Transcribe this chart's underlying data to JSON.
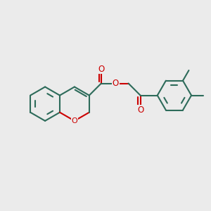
{
  "background_color": "#ebebeb",
  "bond_color": "#2d6b5a",
  "atom_color_O": "#cc0000",
  "bond_width": 1.5,
  "figsize": [
    3.0,
    3.0
  ],
  "dpi": 100,
  "xlim": [
    -3.2,
    3.2
  ],
  "ylim": [
    -1.6,
    1.6
  ]
}
